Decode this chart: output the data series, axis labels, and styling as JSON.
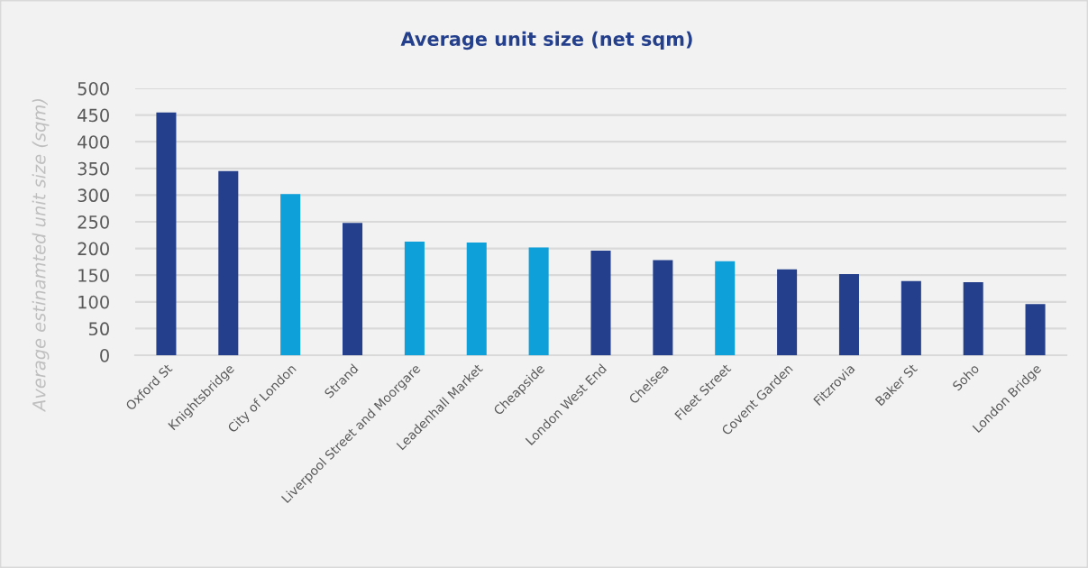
{
  "chart_data": {
    "type": "bar",
    "title": "Average unit size (net sqm)",
    "ylabel": "Average estinamted unit size (sqm)",
    "categories": [
      "Oxford St",
      "Knightsbridge",
      "City of London",
      "Strand",
      "Liverpool Street and Moorgare",
      "Leadenhall Market",
      "Cheapside",
      "London West End",
      "Chelsea",
      "Fleet Street",
      "Covent Garden",
      "Fitzrovia",
      "Baker St",
      "Soho",
      "London Bridge"
    ],
    "values": [
      455,
      345,
      302,
      248,
      213,
      211,
      202,
      196,
      178,
      176,
      161,
      152,
      139,
      137,
      96
    ],
    "colors": [
      "#243f8c",
      "#243f8c",
      "#0ea0d9",
      "#243f8c",
      "#0ea0d9",
      "#0ea0d9",
      "#0ea0d9",
      "#243f8c",
      "#243f8c",
      "#0ea0d9",
      "#243f8c",
      "#243f8c",
      "#243f8c",
      "#243f8c",
      "#243f8c"
    ],
    "ylim": [
      0,
      500
    ],
    "yticks": [
      0,
      50,
      100,
      150,
      200,
      250,
      300,
      350,
      400,
      450,
      500
    ],
    "grid": "y"
  }
}
